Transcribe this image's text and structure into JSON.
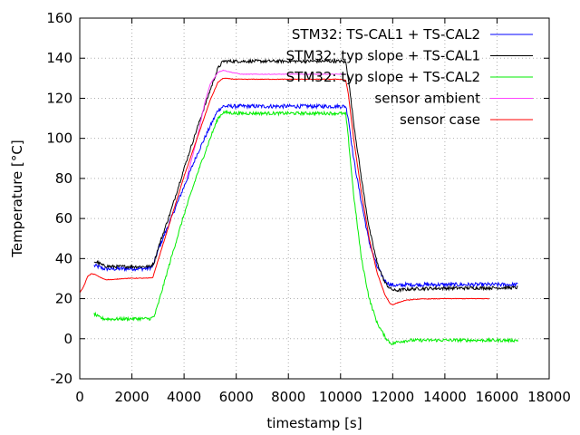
{
  "chart_data": {
    "type": "line",
    "title": "",
    "xlabel": "timestamp [s]",
    "ylabel": "Temperature [°C]",
    "xlim": [
      0,
      18000
    ],
    "ylim": [
      -20,
      160
    ],
    "x_ticks": [
      0,
      2000,
      4000,
      6000,
      8000,
      10000,
      12000,
      14000,
      16000,
      18000
    ],
    "y_ticks": [
      -20,
      0,
      20,
      40,
      60,
      80,
      100,
      120,
      140,
      160
    ],
    "grid": true,
    "legend_position": "top-right",
    "series": [
      {
        "name": "STM32: TS-CAL1 + TS-CAL2",
        "color": "#0000ff",
        "noise": 1.0,
        "points": [
          [
            550,
            36.5
          ],
          [
            700,
            36
          ],
          [
            900,
            35
          ],
          [
            1200,
            34.8
          ],
          [
            2000,
            35
          ],
          [
            2600,
            35
          ],
          [
            2800,
            36
          ],
          [
            3000,
            44
          ],
          [
            3500,
            60
          ],
          [
            4000,
            76
          ],
          [
            4500,
            92
          ],
          [
            5000,
            106
          ],
          [
            5300,
            114
          ],
          [
            5500,
            116
          ],
          [
            6000,
            116
          ],
          [
            7000,
            116
          ],
          [
            8000,
            116
          ],
          [
            9000,
            116
          ],
          [
            10000,
            116
          ],
          [
            10200,
            116
          ],
          [
            10300,
            110
          ],
          [
            10500,
            90
          ],
          [
            10800,
            68
          ],
          [
            11100,
            48
          ],
          [
            11400,
            36
          ],
          [
            11700,
            29
          ],
          [
            11900,
            27
          ],
          [
            12200,
            26.5
          ],
          [
            12500,
            27
          ],
          [
            14000,
            27
          ],
          [
            16800,
            27
          ]
        ]
      },
      {
        "name": "STM32: typ slope + TS-CAL1",
        "color": "#000000",
        "noise": 0.8,
        "points": [
          [
            550,
            38.5
          ],
          [
            700,
            38
          ],
          [
            900,
            36.5
          ],
          [
            1200,
            36
          ],
          [
            2000,
            36
          ],
          [
            2700,
            36
          ],
          [
            2850,
            38
          ],
          [
            3000,
            45
          ],
          [
            3500,
            64
          ],
          [
            4000,
            85
          ],
          [
            4500,
            105
          ],
          [
            5000,
            124
          ],
          [
            5300,
            135
          ],
          [
            5500,
            138.5
          ],
          [
            6000,
            138.5
          ],
          [
            7000,
            138.5
          ],
          [
            8000,
            138.5
          ],
          [
            9000,
            138.5
          ],
          [
            10000,
            138.5
          ],
          [
            10200,
            138
          ],
          [
            10300,
            130
          ],
          [
            10500,
            108
          ],
          [
            10800,
            80
          ],
          [
            11100,
            55
          ],
          [
            11400,
            38
          ],
          [
            11700,
            28
          ],
          [
            11900,
            25
          ],
          [
            12100,
            24
          ],
          [
            12400,
            24.5
          ],
          [
            13000,
            25
          ],
          [
            14000,
            25.2
          ],
          [
            16800,
            25.5
          ]
        ]
      },
      {
        "name": "STM32: typ slope + TS-CAL2",
        "color": "#00ee00",
        "noise": 0.8,
        "points": [
          [
            550,
            12.5
          ],
          [
            700,
            11
          ],
          [
            900,
            10
          ],
          [
            1200,
            9.8
          ],
          [
            2000,
            10
          ],
          [
            2700,
            10
          ],
          [
            2850,
            11
          ],
          [
            3000,
            17
          ],
          [
            3500,
            40
          ],
          [
            4000,
            62
          ],
          [
            4500,
            82
          ],
          [
            5000,
            100
          ],
          [
            5300,
            110
          ],
          [
            5500,
            113
          ],
          [
            6000,
            112.5
          ],
          [
            7000,
            112.5
          ],
          [
            8000,
            112.5
          ],
          [
            9000,
            112.5
          ],
          [
            10000,
            112.5
          ],
          [
            10200,
            112
          ],
          [
            10300,
            100
          ],
          [
            10500,
            72
          ],
          [
            10800,
            40
          ],
          [
            11100,
            20
          ],
          [
            11400,
            8
          ],
          [
            11700,
            1
          ],
          [
            11900,
            -2
          ],
          [
            12000,
            -2.5
          ],
          [
            12200,
            -1.5
          ],
          [
            12600,
            -0.8
          ],
          [
            14000,
            -0.7
          ],
          [
            16800,
            -0.8
          ]
        ]
      },
      {
        "name": "sensor ambient",
        "color": "#ff44ff",
        "noise": 0.15,
        "points": [
          [
            4100,
            80
          ],
          [
            4500,
            100
          ],
          [
            4800,
            118
          ],
          [
            5000,
            127
          ],
          [
            5300,
            133
          ],
          [
            5500,
            134
          ],
          [
            5800,
            133
          ],
          [
            6200,
            132
          ],
          [
            7000,
            132
          ],
          [
            8000,
            132
          ],
          [
            9000,
            132
          ],
          [
            10000,
            132
          ],
          [
            10200,
            132
          ]
        ]
      },
      {
        "name": "sensor case",
        "color": "#ff0000",
        "noise": 0.15,
        "points": [
          [
            0,
            23
          ],
          [
            150,
            26
          ],
          [
            300,
            31
          ],
          [
            450,
            32.5
          ],
          [
            600,
            32
          ],
          [
            800,
            30.5
          ],
          [
            1000,
            29.5
          ],
          [
            1300,
            29.5
          ],
          [
            1600,
            30
          ],
          [
            2000,
            30.2
          ],
          [
            2600,
            30.2
          ],
          [
            2800,
            30.5
          ],
          [
            3000,
            39
          ],
          [
            3500,
            60
          ],
          [
            4000,
            81
          ],
          [
            4500,
            100
          ],
          [
            5000,
            119
          ],
          [
            5300,
            128
          ],
          [
            5500,
            130
          ],
          [
            6000,
            129.5
          ],
          [
            7000,
            129.5
          ],
          [
            8000,
            129.5
          ],
          [
            9000,
            129.5
          ],
          [
            10000,
            129.5
          ],
          [
            10200,
            129
          ],
          [
            10300,
            122
          ],
          [
            10500,
            100
          ],
          [
            10800,
            73
          ],
          [
            11100,
            50
          ],
          [
            11400,
            33
          ],
          [
            11700,
            22
          ],
          [
            11900,
            17.5
          ],
          [
            12000,
            17
          ],
          [
            12200,
            18
          ],
          [
            12500,
            19.2
          ],
          [
            13000,
            19.8
          ],
          [
            14000,
            20
          ],
          [
            15700,
            20
          ]
        ]
      }
    ]
  }
}
